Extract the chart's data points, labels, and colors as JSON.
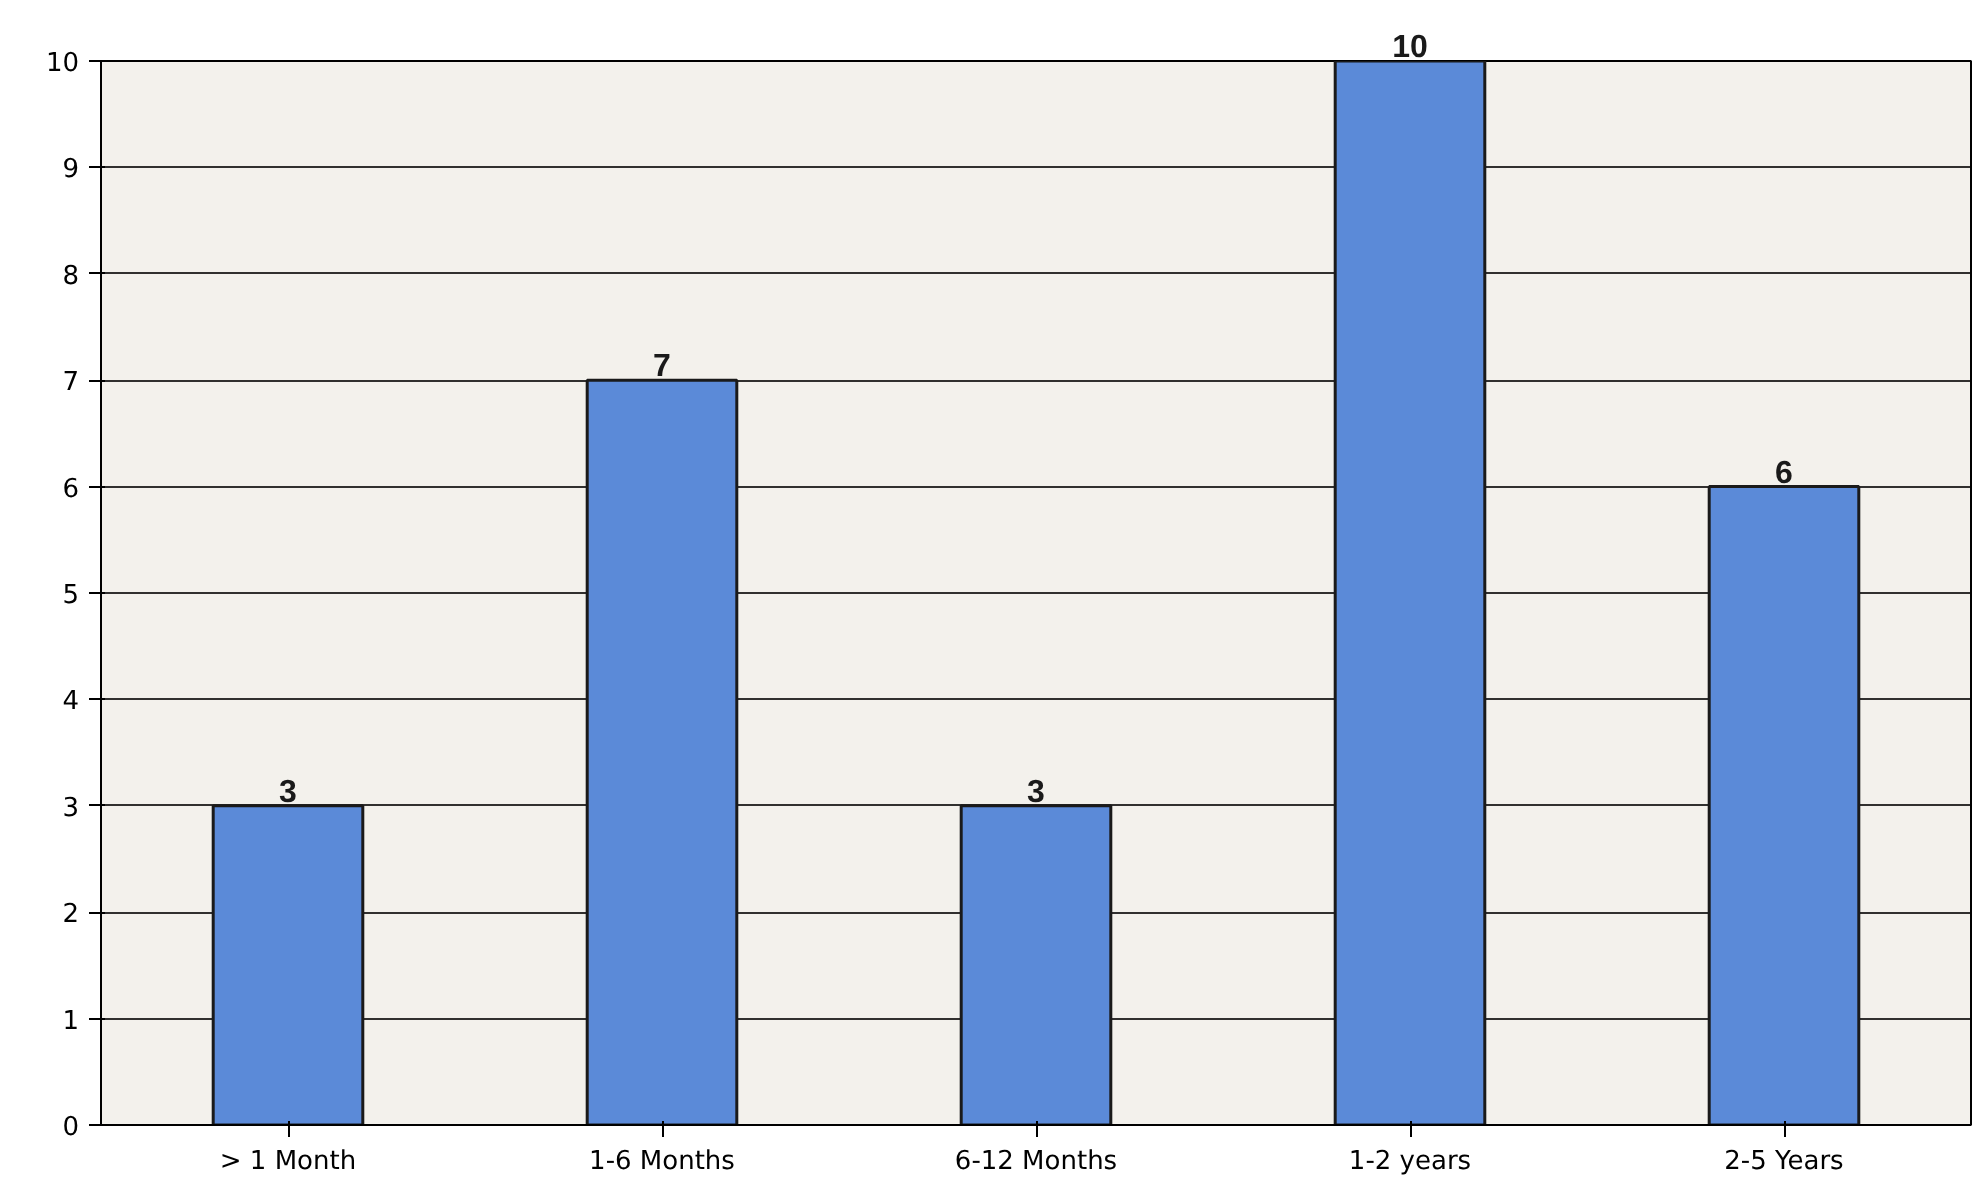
{
  "chart_data": {
    "type": "bar",
    "categories": [
      "> 1 Month",
      "1-6 Months",
      "6-12 Months",
      "1-2 years",
      "2-5 Years"
    ],
    "values": [
      3,
      7,
      3,
      10,
      6
    ],
    "color": "#5b8ad8",
    "ylim": [
      0,
      10
    ],
    "yticks": [
      0,
      1,
      2,
      3,
      4,
      5,
      6,
      7,
      8,
      9,
      10
    ],
    "grid": "y",
    "data_labels": true
  }
}
